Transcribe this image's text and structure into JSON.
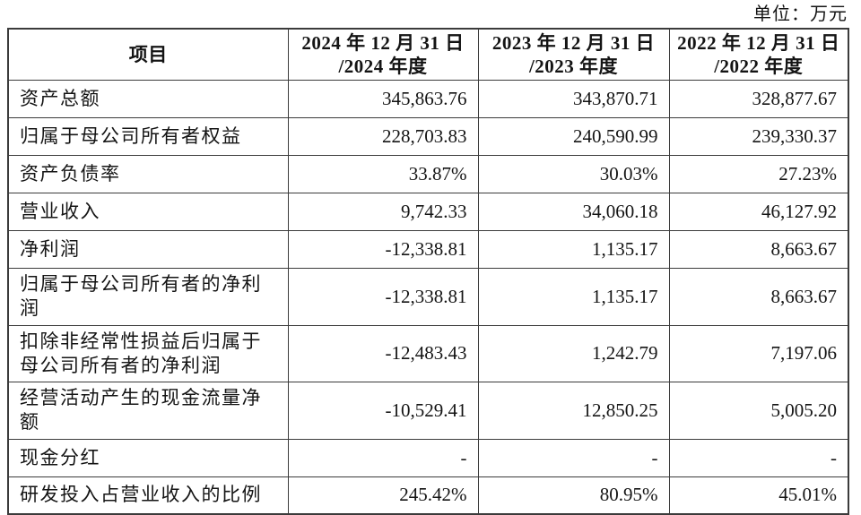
{
  "page": {
    "unit_label": "单位：万元"
  },
  "table": {
    "columns": [
      {
        "label": "项目"
      },
      {
        "label": "2024 年 12 月 31 日\n/2024 年度"
      },
      {
        "label": "2023 年 12 月 31 日\n/2023 年度"
      },
      {
        "label": "2022 年 12 月 31 日\n/2022 年度"
      }
    ],
    "rows": [
      {
        "label": "资产总额",
        "values": [
          "345,863.76",
          "343,870.71",
          "328,877.67"
        ]
      },
      {
        "label": "归属于母公司所有者权益",
        "values": [
          "228,703.83",
          "240,590.99",
          "239,330.37"
        ]
      },
      {
        "label": "资产负债率",
        "values": [
          "33.87%",
          "30.03%",
          "27.23%"
        ]
      },
      {
        "label": "营业收入",
        "values": [
          "9,742.33",
          "34,060.18",
          "46,127.92"
        ]
      },
      {
        "label": "净利润",
        "values": [
          "-12,338.81",
          "1,135.17",
          "8,663.67"
        ]
      },
      {
        "label": "归属于母公司所有者的净利润",
        "values": [
          "-12,338.81",
          "1,135.17",
          "8,663.67"
        ]
      },
      {
        "label": "扣除非经常性损益后归属于母公司所有者的净利润",
        "values": [
          "-12,483.43",
          "1,242.79",
          "7,197.06"
        ]
      },
      {
        "label": "经营活动产生的现金流量净额",
        "values": [
          "-10,529.41",
          "12,850.25",
          "5,005.20"
        ]
      },
      {
        "label": "现金分红",
        "values": [
          "-",
          "-",
          "-"
        ]
      },
      {
        "label": "研发投入占营业收入的比例",
        "values": [
          "245.42%",
          "80.95%",
          "45.01%"
        ]
      }
    ]
  },
  "colors": {
    "background": "#ffffff",
    "text": "#141414",
    "border": "#3b3b3b"
  }
}
